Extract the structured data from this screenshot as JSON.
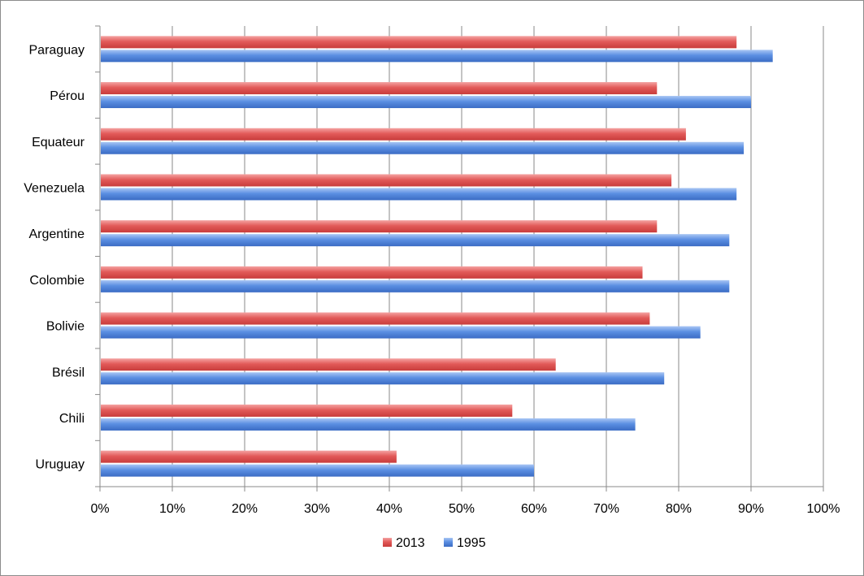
{
  "chart_data": {
    "type": "bar",
    "orientation": "horizontal",
    "categories": [
      "Paraguay",
      "Pérou",
      "Equateur",
      "Venezuela",
      "Argentine",
      "Colombie",
      "Bolivie",
      "Brésil",
      "Chili",
      "Uruguay"
    ],
    "series": [
      {
        "name": "2013",
        "color": "#e0504f",
        "values": [
          88,
          77,
          81,
          79,
          77,
          75,
          76,
          63,
          57,
          41
        ]
      },
      {
        "name": "1995",
        "color": "#4a7ed8",
        "values": [
          93,
          90,
          89,
          88,
          87,
          87,
          83,
          78,
          74,
          60
        ]
      }
    ],
    "xlim": [
      0,
      100
    ],
    "xticks": [
      "0%",
      "10%",
      "20%",
      "30%",
      "40%",
      "50%",
      "60%",
      "70%",
      "80%",
      "90%",
      "100%"
    ],
    "grid": "vertical",
    "legend_position": "bottom",
    "title": "",
    "xlabel": "",
    "ylabel": ""
  }
}
